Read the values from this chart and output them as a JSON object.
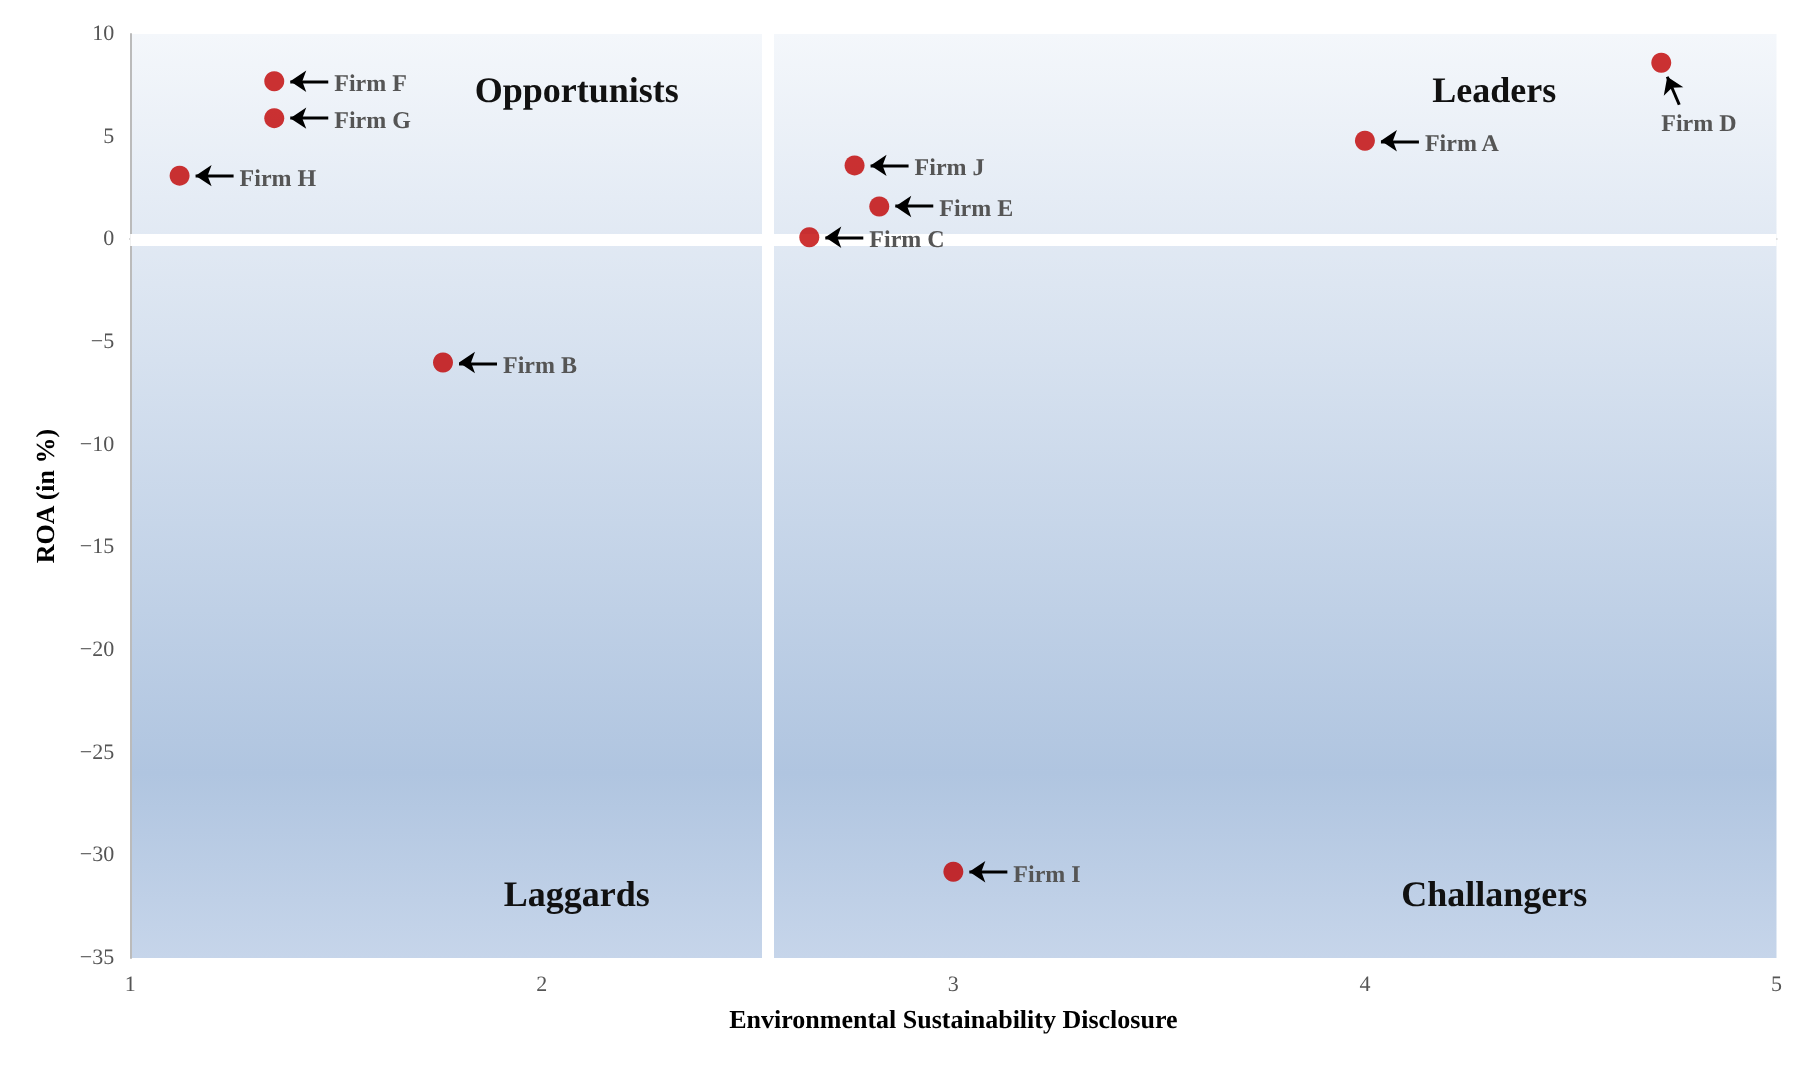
{
  "chart_data": {
    "type": "scatter",
    "xlabel": "Environmental Sustainability Disclosure",
    "ylabel": "ROA (in %)",
    "x": [
      4.0,
      1.76,
      2.65,
      4.72,
      2.82,
      1.35,
      1.35,
      1.12,
      3.0,
      2.76
    ],
    "series": [
      {
        "color": "#c00000",
        "values": [
          4.8,
          -6.0,
          0.1,
          8.6,
          1.6,
          7.7,
          5.9,
          3.1,
          -30.8,
          3.6
        ]
      }
    ],
    "xlim": [
      1,
      5
    ],
    "xticks": [
      1,
      2,
      3,
      4,
      5
    ],
    "ylim": [
      -35,
      10
    ],
    "yticks": [
      -35,
      -30,
      -25,
      -20,
      -15,
      -10,
      -5,
      0,
      5,
      10
    ],
    "grid": false,
    "marker": "circle",
    "ref_lines": [
      {
        "axis": "x",
        "value": 2.55,
        "color": "#ffffff"
      },
      {
        "axis": "y",
        "value": 0,
        "color": "#ffffff"
      }
    ],
    "annotations": [
      "Opportunists",
      "Leaders",
      "Laggards",
      "Challangers",
      {
        "text": "Firm A",
        "x": 4.0,
        "y": 4.8
      },
      {
        "text": "Firm B",
        "x": 1.76,
        "y": -6.0
      },
      {
        "text": "Firm C",
        "x": 2.65,
        "y": 0.1
      },
      {
        "text": "Firm D",
        "x": 4.72,
        "y": 8.6
      },
      {
        "text": "Firm E",
        "x": 2.82,
        "y": 1.6
      },
      {
        "text": "Firm F",
        "x": 1.35,
        "y": 7.7
      },
      {
        "text": "Firm G",
        "x": 1.35,
        "y": 5.9
      },
      {
        "text": "Firm H",
        "x": 1.12,
        "y": 3.1
      },
      {
        "text": "Firm I",
        "x": 3.0,
        "y": -30.8
      },
      {
        "text": "Firm J",
        "x": 2.76,
        "y": 3.6
      }
    ]
  }
}
